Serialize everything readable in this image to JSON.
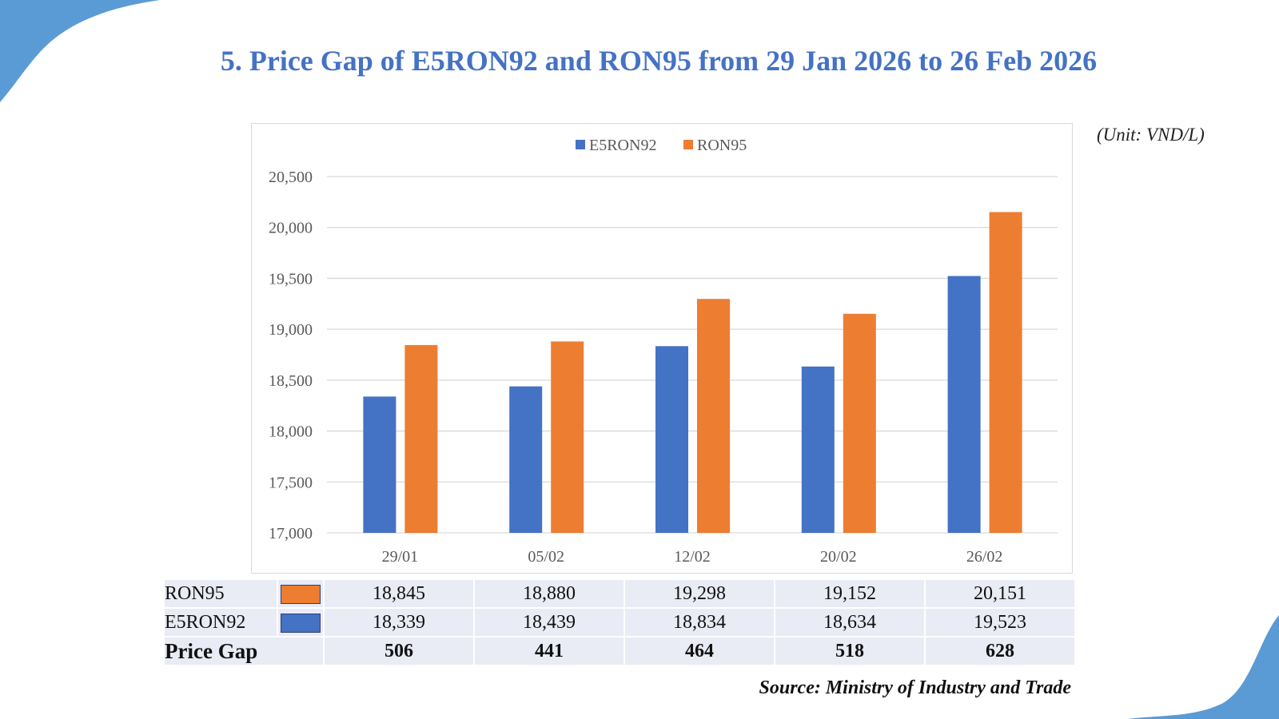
{
  "title": "5. Price Gap of E5RON92 and RON95 from 29 Jan 2026 to 26 Feb 2026",
  "unit": "(Unit: VND/L)",
  "source": "Source: Ministry of Industry and Trade",
  "colors": {
    "e5ron92": "#4472c4",
    "ron95": "#ed7d31",
    "accent": "#5b9bd5"
  },
  "chart_data": {
    "type": "bar",
    "categories": [
      "29/01",
      "05/02",
      "12/02",
      "20/02",
      "26/02"
    ],
    "series": [
      {
        "name": "E5RON92",
        "values": [
          18339,
          18439,
          18834,
          18634,
          19523
        ]
      },
      {
        "name": "RON95",
        "values": [
          18845,
          18880,
          19298,
          19152,
          20151
        ]
      }
    ],
    "ylim": [
      17000,
      20500
    ],
    "yticks": [
      "17,000",
      "17,500",
      "18,000",
      "18,500",
      "19,000",
      "19,500",
      "20,000",
      "20,500"
    ],
    "grid": true,
    "legend": "top-center"
  },
  "table": {
    "rows": [
      {
        "label": "RON95",
        "values": [
          "18,845",
          "18,880",
          "19,298",
          "19,152",
          "20,151"
        ]
      },
      {
        "label": "E5RON92",
        "values": [
          "18,339",
          "18,439",
          "18,834",
          "18,634",
          "19,523"
        ]
      },
      {
        "label": "Price Gap",
        "values": [
          "506",
          "441",
          "464",
          "518",
          "628"
        ]
      }
    ]
  }
}
